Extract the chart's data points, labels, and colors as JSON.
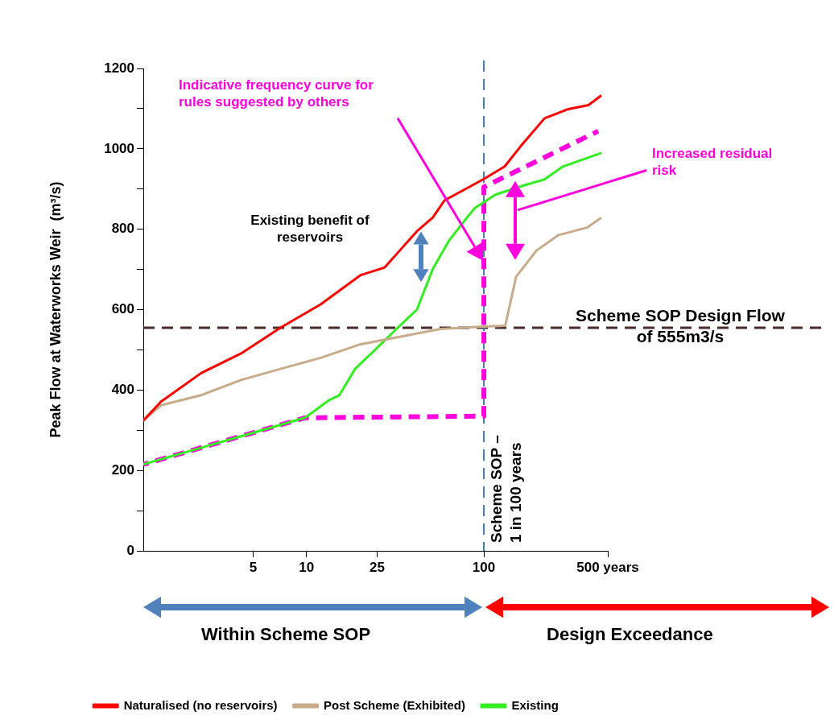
{
  "chart_data": {
    "type": "line",
    "ylabel": "Peak Flow at Waterworks Weir  (m³/s)",
    "xlim": [
      1.2,
      500
    ],
    "xticks": [
      5,
      10,
      25,
      100,
      {
        "value": 500,
        "label": "500 years"
      }
    ],
    "ylim": [
      0,
      1200
    ],
    "yticks": [
      0,
      {
        "value": 100,
        "label": null
      },
      200,
      {
        "value": 300,
        "label": null
      },
      400,
      {
        "value": 500,
        "label": null
      },
      600,
      {
        "value": 700,
        "label": null
      },
      800,
      {
        "value": 900,
        "label": null
      },
      1000,
      {
        "value": 1100,
        "label": null
      },
      1200
    ],
    "log": "x",
    "grid": false,
    "legend": "bottom",
    "marker": "none",
    "series": [
      {
        "name": "Naturalised (no reservoirs)",
        "color": "#ff0000",
        "x": [
          1.2,
          1.51,
          2.54,
          4.27,
          7.18,
          12,
          20.2,
          27.6,
          34,
          41.9,
          51.5,
          60,
          78,
          100,
          131,
          161,
          220,
          300,
          389,
          460
        ],
        "values": [
          324,
          371,
          442,
          491,
          556,
          613,
          686,
          705,
          750,
          795,
          829,
          872,
          899,
          925,
          956,
          1006,
          1076,
          1099,
          1109,
          1133
        ]
      },
      {
        "name": "Post Scheme (Exhibited)",
        "color": "#c8ab8a",
        "x": [
          1.2,
          1.51,
          2.54,
          4.27,
          7.18,
          12,
          20.2,
          34,
          57,
          100,
          132,
          152,
          198,
          262,
          381,
          460
        ],
        "values": [
          324,
          362,
          387,
          425,
          453,
          480,
          514,
          533,
          552,
          558,
          560,
          682,
          747,
          785,
          804,
          829
        ]
      },
      {
        "name": "Existing",
        "color": "#33ee22",
        "x": [
          1.2,
          4.27,
          9.8,
          13.4,
          15.3,
          18.8,
          23.2,
          31.6,
          41.9,
          51.5,
          63.4,
          80.4,
          89,
          100,
          116,
          168,
          220,
          279,
          460
        ],
        "values": [
          215,
          285,
          331,
          375,
          387,
          453,
          491,
          549,
          600,
          701,
          771,
          829,
          853,
          867,
          886,
          909,
          924,
          956,
          990
        ]
      },
      {
        "color": "#ff00dd",
        "line_style": "dashed",
        "x": [
          1.2,
          9.8,
          100,
          100,
          441
        ],
        "values": [
          215,
          331,
          335,
          905,
          1044
        ]
      }
    ],
    "ref_lines": [
      {
        "axis": "y",
        "value": 555,
        "label": "Scheme SOP Design Flow of 555m3/s",
        "color": "#4a2a2a",
        "line_style": "dashed"
      },
      {
        "axis": "x",
        "value": 100,
        "label": "Scheme SOP – 1 in 100 years",
        "color": "#4a78a8",
        "line_style": "dashed"
      }
    ],
    "annotations": [
      "Indicative frequency curve for rules suggested by others",
      "Existing benefit of reservoirs",
      "Increased residual risk",
      "Within Scheme SOP",
      "Design Exceedance"
    ]
  }
}
